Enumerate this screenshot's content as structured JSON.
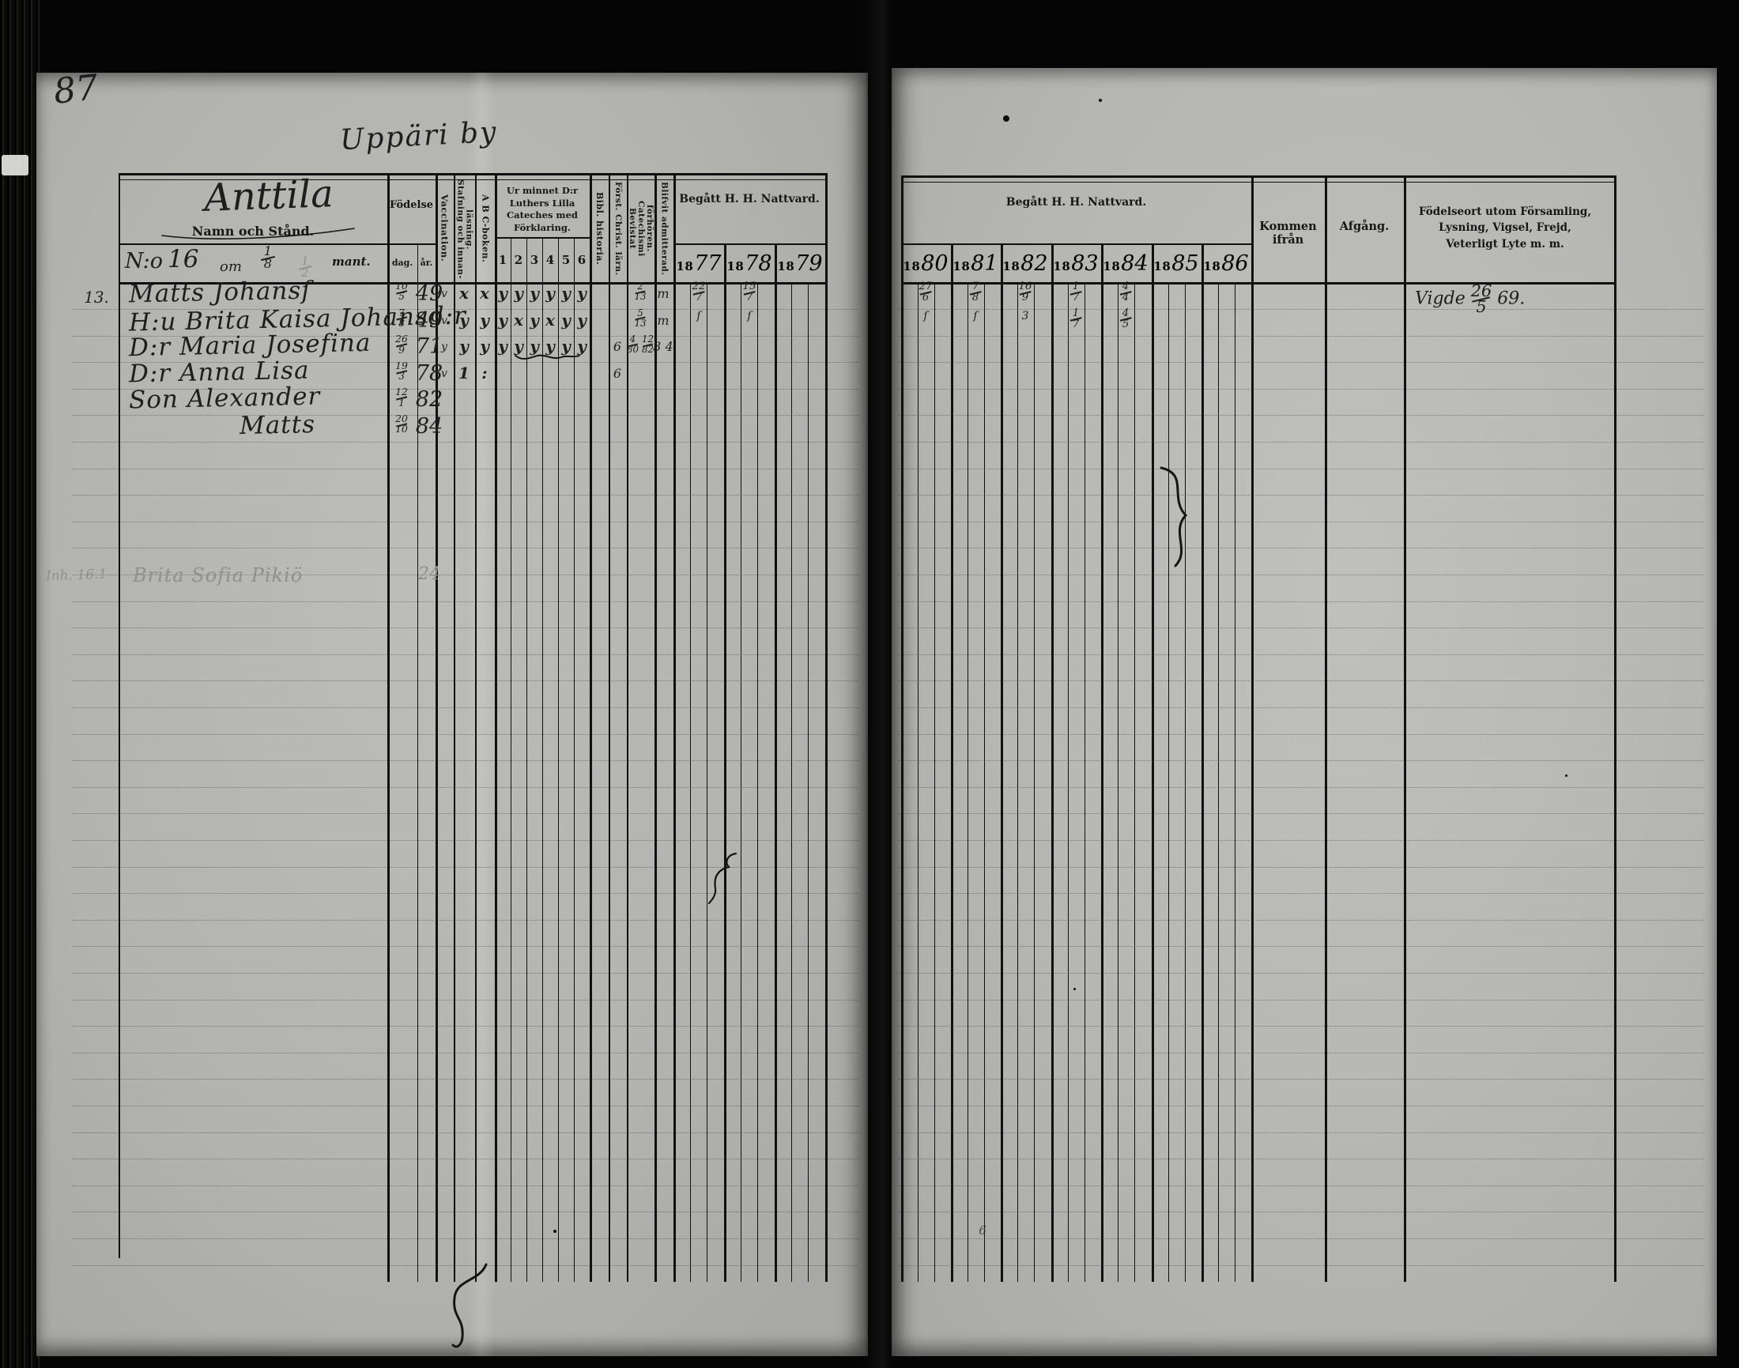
{
  "page": {
    "folio_number": "87",
    "village_heading": "Uppäri by"
  },
  "left_table": {
    "farm_name": "Anttila",
    "name_header": "Namn och Stånd.",
    "no_line": {
      "no": "N:o",
      "no_value": "16",
      "om": "om",
      "fraction1": "1/8",
      "fraction2": "1/2",
      "mant": "mant."
    },
    "columns": {
      "fodelse": "Födelse",
      "dag": "dag.",
      "ar": "år.",
      "vaccination": "Vaccination.",
      "stafning": "Stafning och innan-läsning.",
      "abc": "A B C-boken.",
      "catechism": "Ur minnet D:r Luthers Lilla Cateches med Förklaring.",
      "catechism_numbers": [
        "1",
        "2",
        "3",
        "4",
        "5",
        "6"
      ],
      "bibl": "Bibl. historia.",
      "forst": "Först. Christ. lärn.",
      "bevistat": "Bevistat Catechismi förhören.",
      "admitted": "Blifvit admitterad.",
      "nattvard": "Begått H. H. Nattvard.",
      "years": [
        "1877",
        "1878",
        "1879"
      ]
    }
  },
  "right_table": {
    "nattvard": "Begått H. H. Nattvard.",
    "years": [
      "1880",
      "1881",
      "1882",
      "1883",
      "1884",
      "1885",
      "1886"
    ],
    "kommen": "Kommen ifrån",
    "afgang": "Afgång.",
    "fodelseort": "Födelseort utom Församling, Lysning, Vigsel, Frejd, Veterligt Lyte m. m."
  },
  "records": [
    {
      "row": 0,
      "margin": "13.",
      "name": "Matts Johansſ",
      "birth_day": "10/5",
      "birth_year": "49",
      "vaccination": "v",
      "reading": [
        "x",
        "x",
        "y",
        "y",
        "y",
        "y",
        "y",
        "y"
      ],
      "bibl": "",
      "forst": "",
      "bevistat": "2/13",
      "admitted": "m",
      "communion": {
        "1877": "22/7",
        "1878": "15/7",
        "1880": "27/6",
        "1881": "7/8",
        "1882": "16/9",
        "1883": "1/7",
        "1884": "4/4"
      },
      "note": "Vigde 26/5 69."
    },
    {
      "row": 1,
      "margin": "",
      "name": "H:u Brita Kaisa Johansd:r",
      "birth_day": "7/8",
      "birth_year": "49",
      "vaccination": "v",
      "reading": [
        "y",
        "y",
        "y",
        "x",
        "y",
        "x",
        "y",
        "y"
      ],
      "bibl": "",
      "forst": "",
      "bevistat": "5/13",
      "admitted": "m",
      "communion": {
        "1877": "ſ",
        "1878": "ſ",
        "1880": "ſ",
        "1881": "ſ",
        "1882": "3",
        "1883": "1/7",
        "1884": "4/5"
      },
      "note": ""
    },
    {
      "row": 2,
      "margin": "",
      "name": "D:r Maria Josefina",
      "birth_day": "26/9",
      "birth_year": "71",
      "vaccination": "y",
      "reading": [
        "y",
        "y",
        "y",
        "y",
        "y",
        "y",
        "y",
        "y"
      ],
      "bibl": "",
      "forst": "6",
      "bevistat": "4/80 12/82",
      "admitted": "3 4",
      "communion": {},
      "note": ""
    },
    {
      "row": 3,
      "margin": "",
      "name": "D:r Anna Lisa",
      "birth_day": "19/3",
      "birth_year": "78",
      "vaccination": "v",
      "reading": [
        "1",
        ":"
      ],
      "bibl": "",
      "forst": "6",
      "bevistat": "",
      "admitted": "",
      "communion": {},
      "note": ""
    },
    {
      "row": 4,
      "margin": "",
      "name": "Son Alexander",
      "birth_day": "12/1",
      "birth_year": "82",
      "vaccination": "",
      "reading": [],
      "bibl": "",
      "forst": "",
      "bevistat": "",
      "admitted": "",
      "communion": {},
      "note": ""
    },
    {
      "row": 5,
      "margin": "",
      "name": "Matts",
      "indent": 140,
      "birth_day": "20/10",
      "birth_year": "84",
      "vaccination": "",
      "reading": [],
      "bibl": "",
      "forst": "",
      "bevistat": "",
      "admitted": "",
      "communion": {},
      "note": ""
    }
  ],
  "pencil_record": {
    "margin": "Inh. 16.1",
    "name": "Brita Sofia Pikiö",
    "birth_year": "24"
  },
  "stray_marks": [
    {
      "text": "6"
    }
  ]
}
